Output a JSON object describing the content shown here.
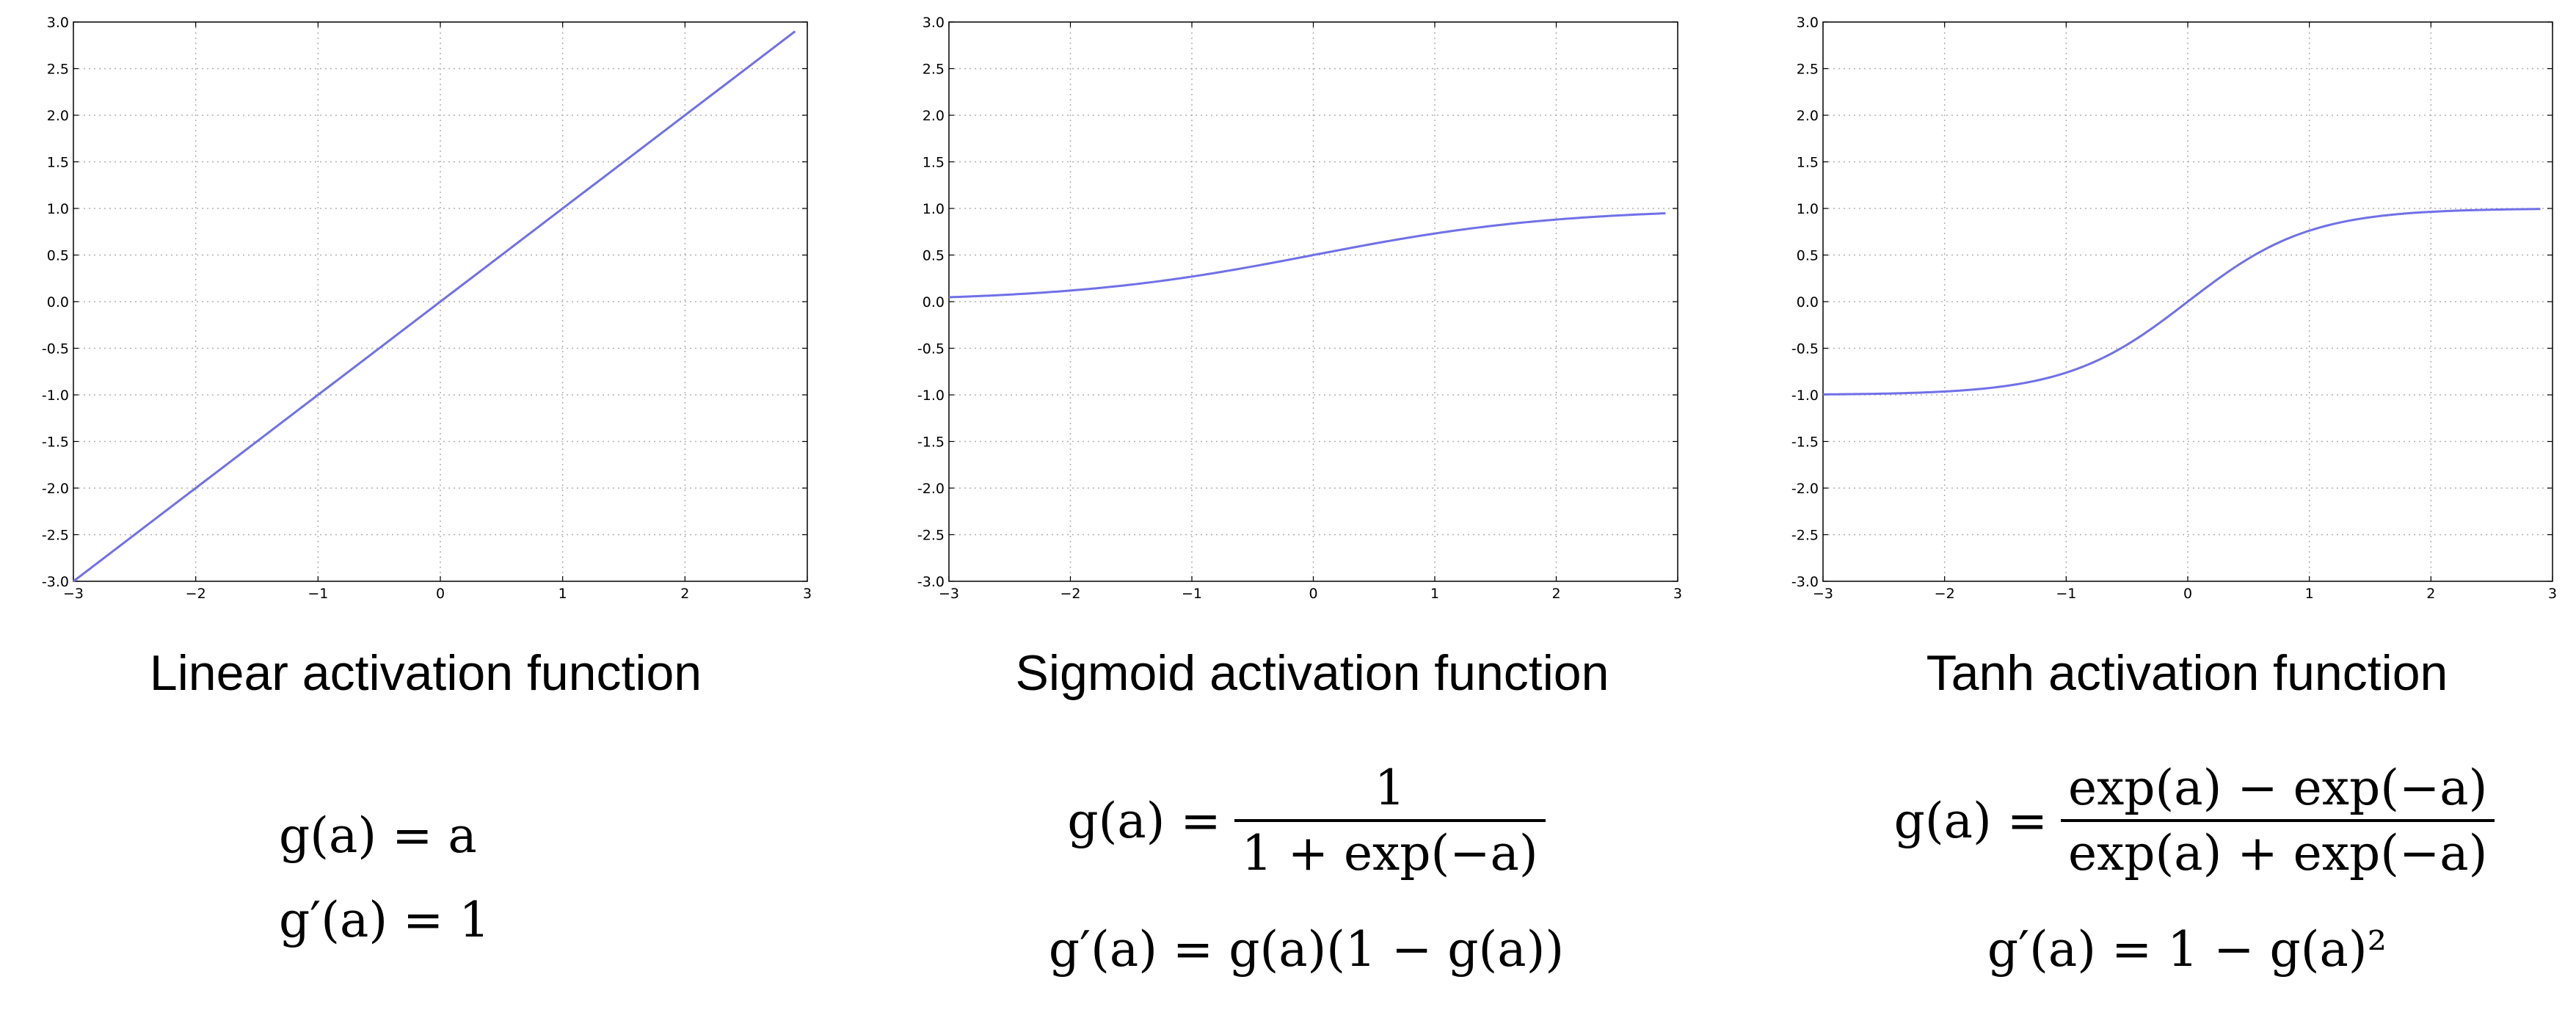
{
  "chart_data": [
    {
      "type": "line",
      "title": "Linear activation function",
      "xlim": [
        -3,
        3
      ],
      "ylim": [
        -3.0,
        3.0
      ],
      "x_ticks": [
        "−3",
        "−2",
        "−1",
        "0",
        "1",
        "2",
        "3"
      ],
      "y_ticks": [
        "3.0",
        "2.5",
        "2.0",
        "1.5",
        "1.0",
        "0.5",
        "0.0",
        "-0.5",
        "-1.0",
        "-1.5",
        "-2.0",
        "-2.5",
        "-3.0"
      ],
      "grid": true,
      "line_color": "#7070e8",
      "function": "linear",
      "x": [
        -3.0,
        -2.5,
        -2.0,
        -1.5,
        -1.0,
        -0.5,
        0.0,
        0.5,
        1.0,
        1.5,
        2.0,
        2.5,
        2.9
      ],
      "y": [
        -3.0,
        -2.5,
        -2.0,
        -1.5,
        -1.0,
        -0.5,
        0.0,
        0.5,
        1.0,
        1.5,
        2.0,
        2.5,
        2.9
      ],
      "equations": {
        "g": "g(a) = a",
        "gprime": "g′(a) = 1"
      }
    },
    {
      "type": "line",
      "title": "Sigmoid activation function",
      "xlim": [
        -3,
        3
      ],
      "ylim": [
        -3.0,
        3.0
      ],
      "x_ticks": [
        "−3",
        "−2",
        "−1",
        "0",
        "1",
        "2",
        "3"
      ],
      "y_ticks": [
        "3.0",
        "2.5",
        "2.0",
        "1.5",
        "1.0",
        "0.5",
        "0.0",
        "-0.5",
        "-1.0",
        "-1.5",
        "-2.0",
        "-2.5",
        "-3.0"
      ],
      "grid": true,
      "line_color": "#7070e8",
      "function": "sigmoid",
      "x": [
        -3.0,
        -2.5,
        -2.0,
        -1.5,
        -1.0,
        -0.5,
        0.0,
        0.5,
        1.0,
        1.5,
        2.0,
        2.5,
        2.9
      ],
      "y": [
        0.047,
        0.076,
        0.119,
        0.182,
        0.269,
        0.378,
        0.5,
        0.622,
        0.731,
        0.818,
        0.881,
        0.924,
        0.948
      ],
      "equations": {
        "g_lhs": "g(a) =",
        "g_num": "1",
        "g_den": "1 + exp(−a)",
        "gprime": "g′(a) = g(a)(1 − g(a))"
      }
    },
    {
      "type": "line",
      "title": "Tanh activation function",
      "xlim": [
        -3,
        3
      ],
      "ylim": [
        -3.0,
        3.0
      ],
      "x_ticks": [
        "−3",
        "−2",
        "−1",
        "0",
        "1",
        "2",
        "3"
      ],
      "y_ticks": [
        "3.0",
        "2.5",
        "2.0",
        "1.5",
        "1.0",
        "0.5",
        "0.0",
        "-0.5",
        "-1.0",
        "-1.5",
        "-2.0",
        "-2.5",
        "-3.0"
      ],
      "grid": true,
      "line_color": "#7070e8",
      "function": "tanh",
      "x": [
        -3.0,
        -2.5,
        -2.0,
        -1.5,
        -1.0,
        -0.5,
        0.0,
        0.5,
        1.0,
        1.5,
        2.0,
        2.5,
        2.9
      ],
      "y": [
        -0.995,
        -0.987,
        -0.964,
        -0.905,
        -0.762,
        -0.462,
        0.0,
        0.462,
        0.762,
        0.905,
        0.964,
        0.987,
        0.994
      ],
      "equations": {
        "g_lhs": "g(a) =",
        "g_num": "exp(a) − exp(−a)",
        "g_den": "exp(a) + exp(−a)",
        "gprime": "g′(a) = 1 − g(a)²"
      }
    }
  ]
}
